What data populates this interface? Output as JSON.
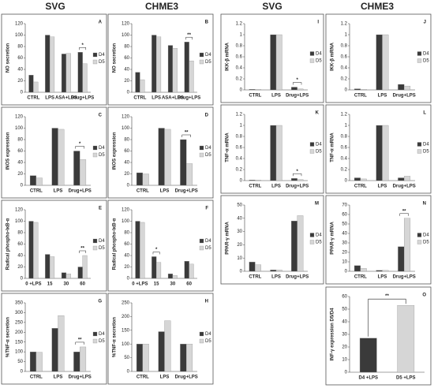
{
  "headers": [
    "SVG",
    "CHME3",
    "SVG",
    "CHME3"
  ],
  "chart_data": [
    {
      "type": "bar",
      "label": "A",
      "ylabel": "NO secretion",
      "categories": [
        "CTRL",
        "LPS",
        "ASA+LPS",
        "Drug+LPS"
      ],
      "ylim": [
        0,
        120
      ],
      "yticks": [
        0,
        20,
        40,
        60,
        80,
        100,
        120
      ],
      "series": [
        {
          "name": "D4",
          "color": "#3a3a3a",
          "values": [
            30,
            100,
            67,
            70
          ]
        },
        {
          "name": "D5",
          "color": "#d6d6d6",
          "values": [
            18,
            97,
            68,
            50
          ]
        }
      ],
      "annotations": [
        {
          "text": "*",
          "category": "Drug+LPS"
        }
      ]
    },
    {
      "type": "bar",
      "label": "B",
      "ylabel": "NO secretion",
      "categories": [
        "CTRL",
        "LPS",
        "ASA+LPS",
        "Drug+LPS"
      ],
      "ylim": [
        0,
        120
      ],
      "yticks": [
        0,
        20,
        40,
        60,
        80,
        100,
        120
      ],
      "series": [
        {
          "name": "D4",
          "color": "#3a3a3a",
          "values": [
            35,
            100,
            82,
            88
          ]
        },
        {
          "name": "D5",
          "color": "#d6d6d6",
          "values": [
            22,
            97,
            77,
            55
          ]
        }
      ],
      "annotations": [
        {
          "text": "**",
          "category": "Drug+LPS"
        }
      ]
    },
    {
      "type": "bar",
      "label": "C",
      "ylabel": "iNOS expression",
      "categories": [
        "CTRL",
        "LPS",
        "Drug+LPS"
      ],
      "ylim": [
        0,
        120
      ],
      "yticks": [
        0,
        20,
        40,
        60,
        80,
        100,
        120
      ],
      "series": [
        {
          "name": "D4",
          "color": "#3a3a3a",
          "values": [
            17,
            100,
            60
          ]
        },
        {
          "name": "D5",
          "color": "#d6d6d6",
          "values": [
            13,
            98,
            45
          ]
        }
      ],
      "annotations": [
        {
          "text": "*",
          "category": "Drug+LPS"
        }
      ]
    },
    {
      "type": "bar",
      "label": "D",
      "ylabel": "iNOS expression",
      "categories": [
        "CTRL",
        "LPS",
        "Drug+LPS"
      ],
      "ylim": [
        0,
        120
      ],
      "yticks": [
        0,
        20,
        40,
        60,
        80,
        100,
        120
      ],
      "series": [
        {
          "name": "D4",
          "color": "#3a3a3a",
          "values": [
            22,
            100,
            80
          ]
        },
        {
          "name": "D5",
          "color": "#d6d6d6",
          "values": [
            20,
            98,
            38
          ]
        }
      ],
      "annotations": [
        {
          "text": "**",
          "category": "Drug+LPS"
        }
      ]
    },
    {
      "type": "bar",
      "label": "E",
      "ylabel": "Radical phospho-IκB-α",
      "categories": [
        "0 +LPS",
        "15",
        "30",
        "60"
      ],
      "ylim": [
        0,
        120
      ],
      "yticks": [
        0,
        20,
        40,
        60,
        80,
        100,
        120
      ],
      "series": [
        {
          "name": "D4",
          "color": "#3a3a3a",
          "values": [
            100,
            42,
            10,
            20
          ]
        },
        {
          "name": "D5",
          "color": "#d6d6d6",
          "values": [
            98,
            38,
            8,
            40
          ]
        }
      ],
      "annotations": [
        {
          "text": "**",
          "category": "60"
        }
      ]
    },
    {
      "type": "bar",
      "label": "F",
      "ylabel": "Radical phospho-IκB-α",
      "categories": [
        "0 +LPS",
        "15",
        "30",
        "60"
      ],
      "ylim": [
        0,
        120
      ],
      "yticks": [
        0,
        20,
        40,
        60,
        80,
        100,
        120
      ],
      "series": [
        {
          "name": "D4",
          "color": "#3a3a3a",
          "values": [
            100,
            38,
            8,
            30
          ]
        },
        {
          "name": "D5",
          "color": "#d6d6d6",
          "values": [
            98,
            28,
            5,
            25
          ]
        }
      ],
      "annotations": [
        {
          "text": "*",
          "category": "15"
        }
      ]
    },
    {
      "type": "bar",
      "label": "G",
      "ylabel": "%TNF-α secretion",
      "categories": [
        "CTRL",
        "LPS",
        "Drug+LPS"
      ],
      "ylim": [
        0,
        350
      ],
      "yticks": [
        0,
        50,
        100,
        150,
        200,
        250,
        300,
        350
      ],
      "series": [
        {
          "name": "D4",
          "color": "#3a3a3a",
          "values": [
            100,
            220,
            100
          ]
        },
        {
          "name": "D5",
          "color": "#d6d6d6",
          "values": [
            98,
            285,
            125
          ]
        }
      ],
      "annotations": [
        {
          "text": "**",
          "category": "Drug+LPS"
        }
      ]
    },
    {
      "type": "bar",
      "label": "H",
      "ylabel": "%TNF-α secretion",
      "categories": [
        "CTRL",
        "LPS",
        "Drug+LPS"
      ],
      "ylim": [
        0,
        250
      ],
      "yticks": [
        0,
        50,
        100,
        150,
        200,
        250
      ],
      "series": [
        {
          "name": "D4",
          "color": "#3a3a3a",
          "values": [
            100,
            145,
            100
          ]
        },
        {
          "name": "D5",
          "color": "#d6d6d6",
          "values": [
            100,
            185,
            100
          ]
        }
      ],
      "annotations": []
    },
    {
      "type": "bar",
      "label": "I",
      "ylabel": "IKK-β mRNA",
      "categories": [
        "CTRL",
        "LPS",
        "Drug+LPS"
      ],
      "ylim": [
        0,
        1.2
      ],
      "yticks": [
        0,
        0.2,
        0.4,
        0.6,
        0.8,
        1,
        1.2
      ],
      "series": [
        {
          "name": "D4",
          "color": "#3a3a3a",
          "values": [
            0.01,
            1,
            0.05
          ]
        },
        {
          "name": "D5",
          "color": "#d6d6d6",
          "values": [
            0.01,
            1,
            0.02
          ]
        }
      ],
      "annotations": [
        {
          "text": "*",
          "category": "Drug+LPS"
        }
      ]
    },
    {
      "type": "bar",
      "label": "J",
      "ylabel": "IKK-β mRNA",
      "categories": [
        "CTRL",
        "LPS",
        "Drug+LPS"
      ],
      "ylim": [
        0,
        1.2
      ],
      "yticks": [
        0,
        0.2,
        0.4,
        0.6,
        0.8,
        1,
        1.2
      ],
      "series": [
        {
          "name": "D4",
          "color": "#3a3a3a",
          "values": [
            0.02,
            1,
            0.1
          ]
        },
        {
          "name": "D5",
          "color": "#d6d6d6",
          "values": [
            0.01,
            1,
            0.07
          ]
        }
      ],
      "annotations": []
    },
    {
      "type": "bar",
      "label": "K",
      "ylabel": "TNF-α mRNA",
      "categories": [
        "CTRL",
        "LPS",
        "Drug+LPS"
      ],
      "ylim": [
        0,
        1.2
      ],
      "yticks": [
        0,
        0.2,
        0.4,
        0.6,
        0.8,
        1,
        1.2
      ],
      "series": [
        {
          "name": "D4",
          "color": "#3a3a3a",
          "values": [
            0.01,
            1,
            0.04
          ]
        },
        {
          "name": "D5",
          "color": "#d6d6d6",
          "values": [
            0.01,
            1,
            0.02
          ]
        }
      ],
      "annotations": [
        {
          "text": "*",
          "category": "Drug+LPS"
        }
      ]
    },
    {
      "type": "bar",
      "label": "L",
      "ylabel": "TNF-α mRNA",
      "categories": [
        "CTRL",
        "LPS",
        "Drug+LPS"
      ],
      "ylim": [
        0,
        1.2
      ],
      "yticks": [
        0,
        0.2,
        0.4,
        0.6,
        0.8,
        1,
        1.2
      ],
      "series": [
        {
          "name": "D4",
          "color": "#3a3a3a",
          "values": [
            0.05,
            1,
            0.05
          ]
        },
        {
          "name": "D5",
          "color": "#d6d6d6",
          "values": [
            0.03,
            1,
            0.08
          ]
        }
      ],
      "annotations": []
    },
    {
      "type": "bar",
      "label": "M",
      "ylabel": "PPAR-γ mRNA",
      "categories": [
        "CTRL",
        "LPS",
        "Drug+LPS"
      ],
      "ylim": [
        0,
        50
      ],
      "yticks": [
        0,
        10,
        20,
        30,
        40,
        50
      ],
      "series": [
        {
          "name": "D4",
          "color": "#3a3a3a",
          "values": [
            7,
            1,
            38
          ]
        },
        {
          "name": "D5",
          "color": "#d6d6d6",
          "values": [
            5,
            1,
            42
          ]
        }
      ],
      "annotations": []
    },
    {
      "type": "bar",
      "label": "N",
      "ylabel": "PPAR-γ mRNA",
      "categories": [
        "CTRL",
        "LPS",
        "Drug+LPS"
      ],
      "ylim": [
        0,
        70
      ],
      "yticks": [
        0,
        10,
        20,
        30,
        40,
        50,
        60,
        70
      ],
      "series": [
        {
          "name": "D4",
          "color": "#3a3a3a",
          "values": [
            6,
            1,
            26
          ]
        },
        {
          "name": "D5",
          "color": "#d6d6d6",
          "values": [
            3,
            1,
            56
          ]
        }
      ],
      "annotations": [
        {
          "text": "**",
          "category": "Drug+LPS"
        }
      ]
    },
    {
      "type": "bar",
      "label": "O",
      "ylabel": "INF-γ expression D5/D4",
      "categories": [
        "D4 +LPS",
        "D5 +LPS"
      ],
      "ylim": [
        0,
        60
      ],
      "yticks": [
        0,
        10,
        20,
        30,
        40,
        50,
        60
      ],
      "values": [
        27,
        53
      ],
      "colors": [
        "#3a3a3a",
        "#d6d6d6"
      ],
      "annotations": [
        {
          "text": "**"
        }
      ]
    }
  ]
}
